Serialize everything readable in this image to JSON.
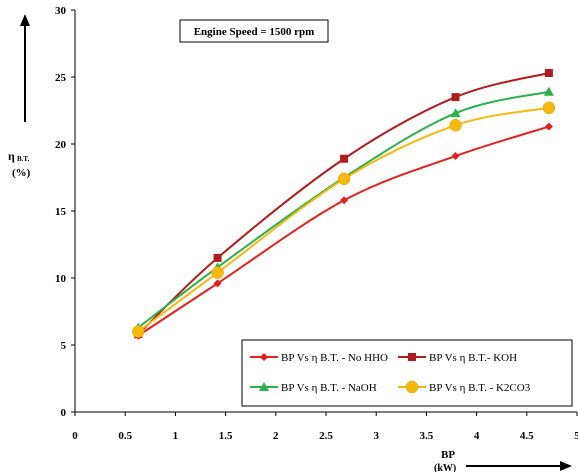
{
  "chart_data": {
    "type": "line",
    "annotation": "Engine Speed = 1500 rpm",
    "ylabel_main": "η",
    "ylabel_sub": "B.T.",
    "ylabel_unit": "(%)",
    "xlabel_main": "BP",
    "xlabel_unit": "(kW)",
    "xlim": [
      0,
      5
    ],
    "ylim": [
      0,
      30
    ],
    "xticks": [
      "0",
      "0.5",
      "1",
      "1.5",
      "2",
      "2.5",
      "3",
      "3.5",
      "4",
      "4.5",
      "5"
    ],
    "yticks": [
      "0",
      "5",
      "10",
      "15",
      "20",
      "25",
      "30"
    ],
    "grid": false,
    "legend_position": "bottom-right",
    "series": [
      {
        "name": "BP Vs η B.T. - No HHO",
        "color": "#e3201b",
        "marker": "diamond",
        "x": [
          0.63,
          1.42,
          2.68,
          3.79,
          4.72
        ],
        "y": [
          5.7,
          9.6,
          15.8,
          19.1,
          21.3
        ]
      },
      {
        "name": "BP Vs η B.T.- KOH",
        "color": "#b01c1c",
        "marker": "square",
        "x": [
          0.63,
          1.42,
          2.68,
          3.79,
          4.72
        ],
        "y": [
          5.8,
          11.5,
          18.9,
          23.5,
          25.3
        ]
      },
      {
        "name": "BP Vs η B.T. - NaOH",
        "color": "#2db04b",
        "marker": "triangle",
        "x": [
          0.63,
          1.42,
          2.68,
          3.79,
          4.72
        ],
        "y": [
          6.3,
          10.8,
          17.5,
          22.3,
          23.9
        ]
      },
      {
        "name": "BP Vs η B.T. - K2CO3",
        "color": "#f5b80f",
        "marker": "circle",
        "x": [
          0.63,
          1.42,
          2.68,
          3.79,
          4.72
        ],
        "y": [
          6.0,
          10.4,
          17.4,
          21.4,
          22.7
        ]
      }
    ]
  }
}
